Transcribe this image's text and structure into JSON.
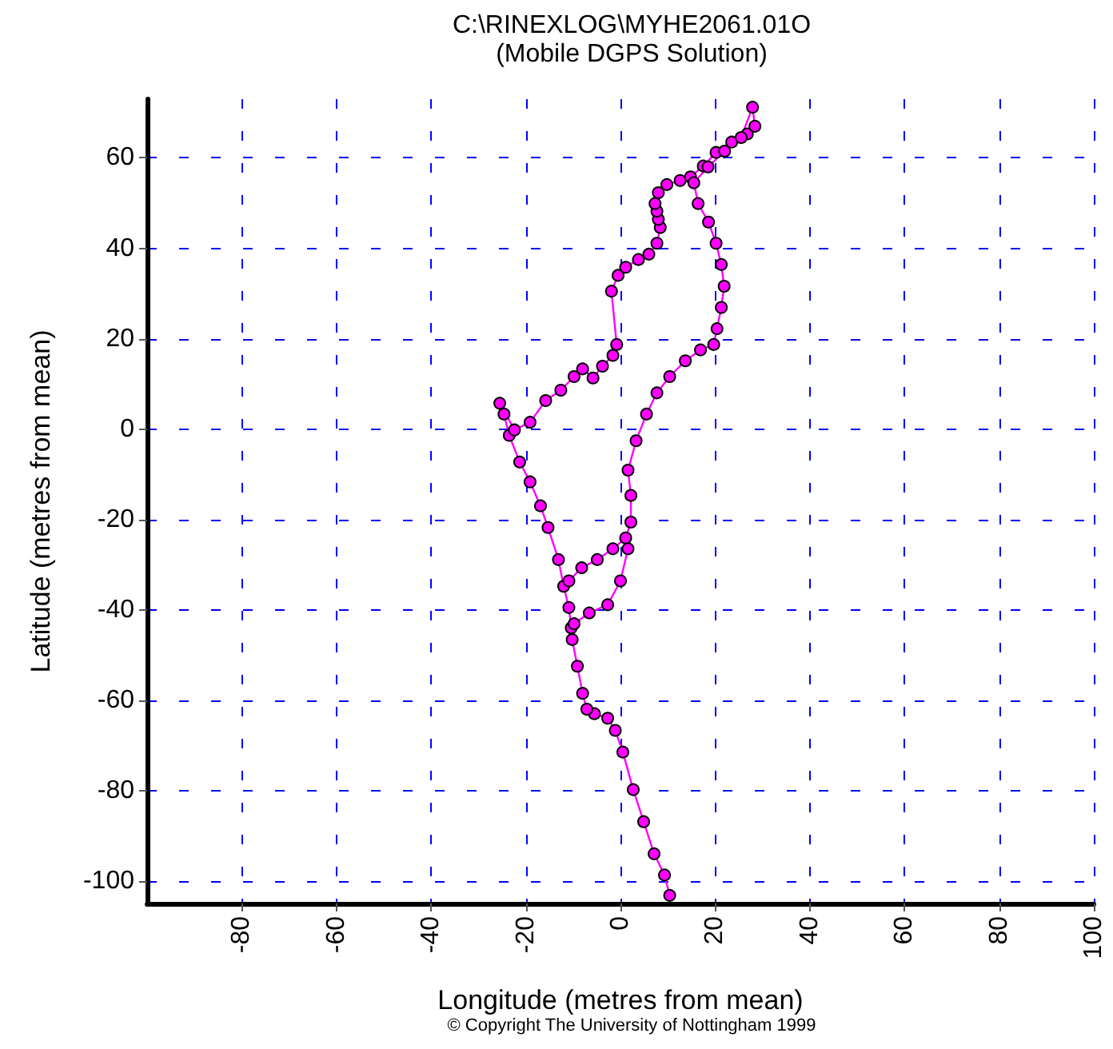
{
  "chart_data": {
    "type": "line",
    "title": "C:\\RINEXLOG\\MYHE2061.01O",
    "subtitle": "(Mobile DGPS Solution)",
    "xlabel": "Longitude (metres from mean)",
    "ylabel": "Latitude (metres from mean)",
    "annotations": [
      "© Copyright The University of Nottingham 1999"
    ],
    "xlim": [
      -100,
      100
    ],
    "xticks": [
      -80,
      -60,
      -40,
      -20,
      0,
      20,
      40,
      60,
      80,
      100
    ],
    "ylim": [
      -105,
      73
    ],
    "yticks": [
      -100,
      -80,
      -60,
      -40,
      -20,
      0,
      20,
      40,
      60
    ],
    "grid": true,
    "marker": "circle",
    "line_style": "solid",
    "series": [
      {
        "color": "#ff00ff",
        "x": [
          10.4,
          9.3,
          7.1,
          4.9,
          2.7,
          0.5,
          -1.1,
          -2.7,
          -5.5,
          -7.1,
          -8.0,
          -9.1,
          -10.2,
          -10.4,
          -10.9,
          -12.0,
          -13.1,
          -15.3,
          -16.9,
          -19.1,
          -21.3,
          -23.5,
          -24.6,
          -25.5,
          -22.4,
          -19.1,
          -15.8,
          -12.6,
          -9.8,
          -8.0,
          -5.8,
          -3.8,
          -1.6,
          -0.8,
          -1.9,
          -0.5,
          1.1,
          3.8,
          6.0,
          7.7,
          8.4,
          8.0,
          7.7,
          7.3,
          8.0,
          9.8,
          12.6,
          14.8,
          17.5,
          20.2,
          23.5,
          26.8,
          28.4,
          27.9,
          25.5,
          22.0,
          18.5,
          15.5,
          16.4,
          18.6,
          20.2,
          21.3,
          21.9,
          21.3,
          20.4,
          19.7,
          16.9,
          13.7,
          10.4,
          7.7,
          5.5,
          3.3,
          1.6,
          2.2,
          2.2,
          1.1,
          -1.6,
          -4.9,
          -8.2,
          -10.9,
          null,
          1.6,
          0.0,
          -2.7,
          -6.6,
          -9.8
        ],
        "values": [
          -103.2,
          -98.7,
          -94,
          -86.9,
          -79.8,
          -71.5,
          -66.7,
          -64,
          -63,
          -62,
          -58.5,
          -52.5,
          -46.6,
          -44,
          -39.5,
          -34.8,
          -28.9,
          -21.8,
          -17,
          -11.7,
          -7.3,
          -1.4,
          3.3,
          5.7,
          -0.2,
          1.5,
          6.3,
          8.6,
          11.6,
          13.3,
          11.3,
          13.9,
          16.3,
          18.7,
          30.5,
          34,
          35.8,
          37.5,
          38.7,
          41.1,
          44.6,
          46.4,
          48.2,
          49.9,
          52.3,
          54.1,
          55,
          55.8,
          58.2,
          61.2,
          63.5,
          65.3,
          67,
          71.2,
          64.5,
          61.5,
          58.0,
          54.5,
          49.9,
          45.8,
          41.1,
          36.4,
          31.6,
          26.9,
          22.2,
          18.7,
          17.5,
          15.1,
          11.6,
          8.0,
          3.3,
          -2.6,
          -9.1,
          -14.7,
          -20.6,
          -24.1,
          -26.5,
          -28.9,
          -30.7,
          -33.6,
          null,
          -26.5,
          -33.6,
          -38.9,
          -40.7,
          -43.1
        ]
      }
    ]
  }
}
